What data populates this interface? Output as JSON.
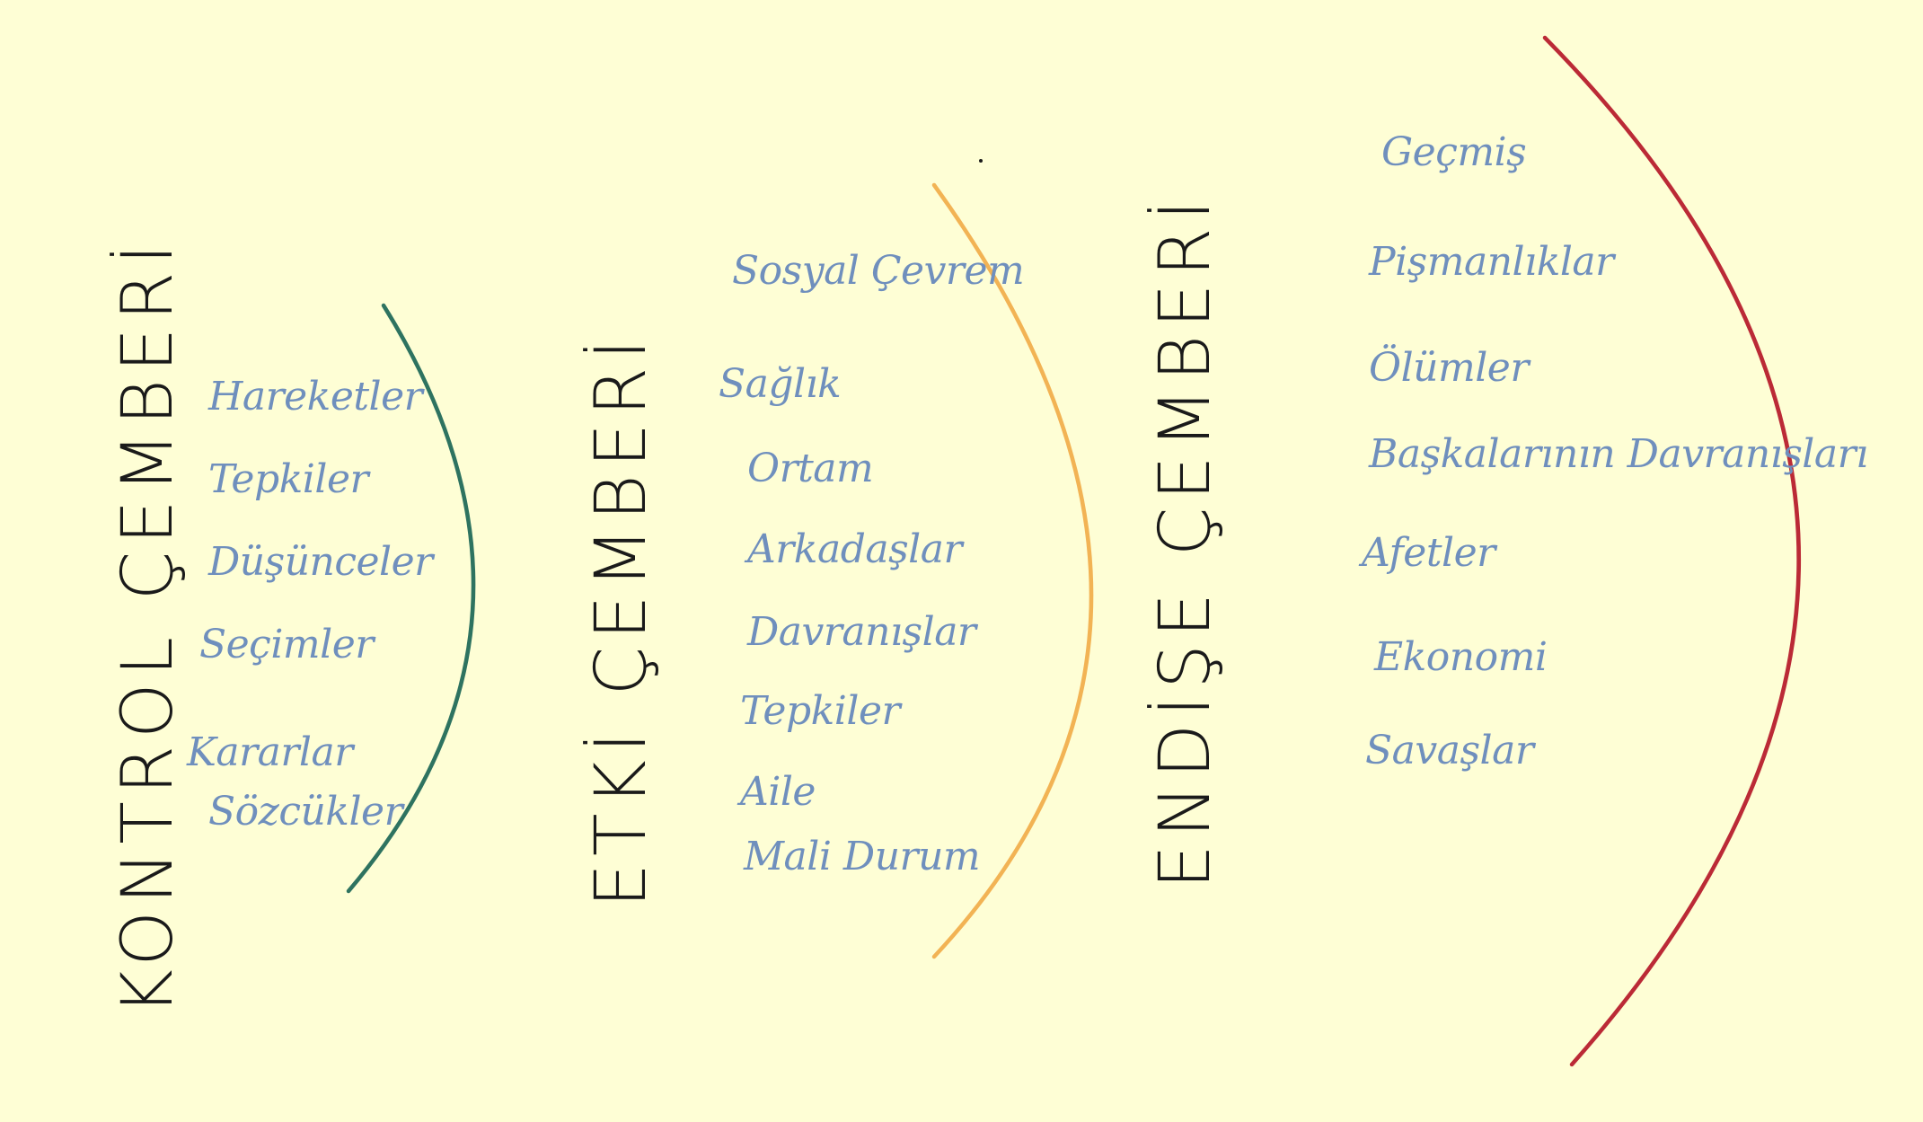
{
  "colors": {
    "background": "#fefed5",
    "title_ink": "#1a1a1a",
    "item_ink": "#6f8fbd",
    "control_arc": "#2e7360",
    "influence_arc": "#f2b354",
    "concern_arc": "#bb2a36"
  },
  "circles": [
    {
      "key": "control",
      "title": "KONTROL ÇEMBERİ",
      "items": [
        "Hareketler",
        "Tepkiler",
        "Düşünceler",
        "Seçimler",
        "Kararlar",
        "Sözcükler"
      ]
    },
    {
      "key": "influence",
      "title": "ETKİ ÇEMBERİ",
      "items": [
        "Sosyal Çevrem",
        "Sağlık",
        "Ortam",
        "Arkadaşlar",
        "Davranışlar",
        "Tepkiler",
        "Aile",
        "Mali Durum"
      ]
    },
    {
      "key": "concern",
      "title": "ENDİŞE ÇEMBERİ",
      "items": [
        "Geçmiş",
        "Pişmanlıklar",
        "Ölümler",
        "Başkalarının Davranışları",
        "Afetler",
        "Ekonomi",
        "Savaşlar"
      ]
    }
  ]
}
